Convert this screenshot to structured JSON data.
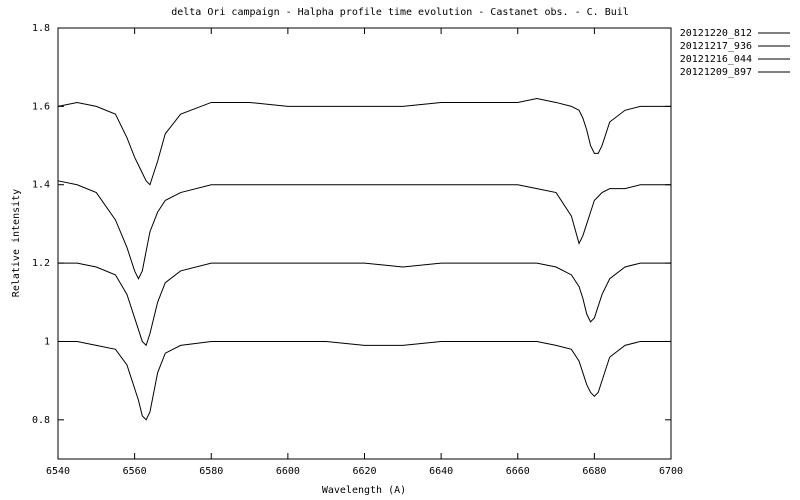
{
  "chart_data": {
    "type": "line",
    "title": "delta Ori campaign - Halpha profile time evolution - Castanet obs. - C. Buil",
    "x_label": "Wavelength (A)",
    "y_label": "Relative intensity",
    "x": [
      6540,
      6545,
      6550,
      6555,
      6558,
      6560,
      6561,
      6562,
      6563,
      6564,
      6566,
      6568,
      6572,
      6580,
      6590,
      6600,
      6610,
      6620,
      6630,
      6640,
      6650,
      6660,
      6665,
      6670,
      6674,
      6676,
      6677,
      6678,
      6679,
      6680,
      6681,
      6682,
      6684,
      6688,
      6692,
      6700
    ],
    "series": [
      {
        "name": "20121220_812",
        "color": "#000000",
        "values": [
          1.6,
          1.61,
          1.6,
          1.58,
          1.52,
          1.47,
          1.45,
          1.43,
          1.41,
          1.4,
          1.46,
          1.53,
          1.58,
          1.61,
          1.61,
          1.6,
          1.6,
          1.6,
          1.6,
          1.61,
          1.61,
          1.61,
          1.62,
          1.61,
          1.6,
          1.59,
          1.57,
          1.54,
          1.5,
          1.48,
          1.48,
          1.5,
          1.56,
          1.59,
          1.6,
          1.6
        ]
      },
      {
        "name": "20121217_936",
        "color": "#000000",
        "values": [
          1.41,
          1.4,
          1.38,
          1.31,
          1.24,
          1.18,
          1.16,
          1.18,
          1.23,
          1.28,
          1.33,
          1.36,
          1.38,
          1.4,
          1.4,
          1.4,
          1.4,
          1.4,
          1.4,
          1.4,
          1.4,
          1.4,
          1.39,
          1.38,
          1.32,
          1.25,
          1.27,
          1.3,
          1.33,
          1.36,
          1.37,
          1.38,
          1.39,
          1.39,
          1.4,
          1.4
        ]
      },
      {
        "name": "20121216_044",
        "color": "#000000",
        "values": [
          1.2,
          1.2,
          1.19,
          1.17,
          1.12,
          1.06,
          1.03,
          1.0,
          0.99,
          1.02,
          1.1,
          1.15,
          1.18,
          1.2,
          1.2,
          1.2,
          1.2,
          1.2,
          1.19,
          1.2,
          1.2,
          1.2,
          1.2,
          1.19,
          1.17,
          1.14,
          1.11,
          1.07,
          1.05,
          1.06,
          1.09,
          1.12,
          1.16,
          1.19,
          1.2,
          1.2
        ]
      },
      {
        "name": "20121209_897",
        "color": "#000000",
        "values": [
          1.0,
          1.0,
          0.99,
          0.98,
          0.94,
          0.88,
          0.85,
          0.81,
          0.8,
          0.82,
          0.92,
          0.97,
          0.99,
          1.0,
          1.0,
          1.0,
          1.0,
          0.99,
          0.99,
          1.0,
          1.0,
          1.0,
          1.0,
          0.99,
          0.98,
          0.95,
          0.92,
          0.89,
          0.87,
          0.86,
          0.87,
          0.9,
          0.96,
          0.99,
          1.0,
          1.0
        ]
      }
    ],
    "xlim": [
      6540,
      6700
    ],
    "xticks": [
      6540,
      6560,
      6580,
      6600,
      6620,
      6640,
      6660,
      6680,
      6700
    ],
    "ylim": [
      0.7,
      1.8
    ],
    "yticks": [
      0.8,
      1,
      1.2,
      1.4,
      1.6,
      1.8
    ],
    "grid": false,
    "legend": "outside-top-right"
  }
}
